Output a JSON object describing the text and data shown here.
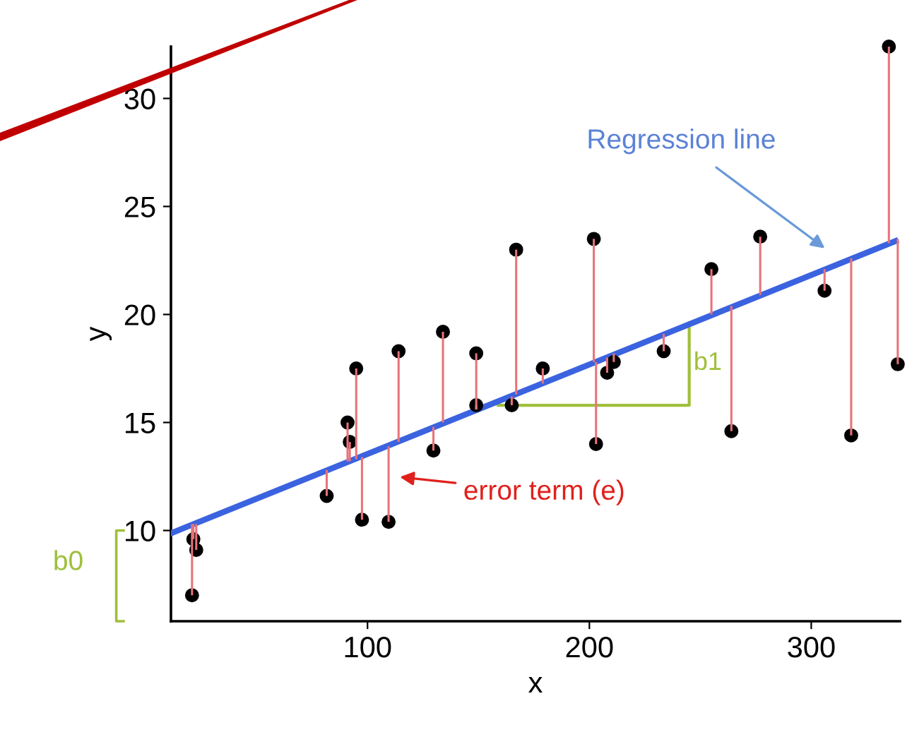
{
  "chart_data": {
    "type": "scatter",
    "xlabel": "x",
    "ylabel": "y",
    "xlim": [
      11.4,
      340
    ],
    "ylim": [
      5.8,
      32.4
    ],
    "xticks": [
      100,
      200,
      300
    ],
    "yticks": [
      10,
      15,
      20,
      25,
      30
    ],
    "grid": false,
    "legend": false,
    "marker": "circle",
    "series": [
      {
        "color": "#000000",
        "x": [
          21.5,
          22.8,
          20.9,
          81.6,
          91,
          92,
          94.9,
          97.5,
          109.5,
          114,
          129.7,
          134,
          149,
          149,
          167,
          165,
          179,
          202,
          203,
          208,
          211,
          233.5,
          255,
          264,
          277,
          306,
          318,
          335,
          339
        ],
        "values": [
          9.6,
          9.1,
          7.0,
          11.6,
          15.0,
          14.1,
          17.5,
          10.5,
          10.4,
          18.3,
          13.7,
          19.2,
          15.8,
          18.2,
          23.0,
          15.8,
          17.5,
          23.5,
          14.0,
          17.3,
          17.8,
          18.3,
          22.1,
          14.6,
          23.6,
          21.1,
          14.4,
          32.4,
          17.7
        ],
        "errors": [
          [
            9.6,
            10.3
          ],
          [
            9.1,
            10.3
          ],
          [
            7.0,
            10.3
          ],
          [
            11.6,
            12.8
          ],
          [
            13.2,
            15.0
          ],
          [
            13.2,
            14.1
          ],
          [
            13.3,
            17.5
          ],
          [
            10.5,
            13.4
          ],
          [
            10.4,
            13.9
          ],
          [
            14.1,
            18.3
          ],
          [
            13.7,
            14.8
          ],
          [
            15.0,
            19.2
          ],
          [
            15.6,
            15.8
          ],
          [
            15.6,
            18.2
          ],
          [
            16.3,
            23.0
          ],
          [
            15.8,
            16.2
          ],
          [
            16.8,
            17.5
          ],
          [
            17.8,
            23.5
          ],
          [
            14.0,
            17.8
          ],
          [
            17.3,
            18.0
          ],
          [
            17.8,
            18.2
          ],
          [
            18.3,
            19.1
          ],
          [
            20.0,
            22.1
          ],
          [
            14.6,
            20.4
          ],
          [
            20.9,
            23.6
          ],
          [
            21.1,
            22.1
          ],
          [
            14.4,
            22.6
          ],
          [
            23.3,
            32.4
          ],
          [
            17.7,
            23.5
          ]
        ]
      },
      {
        "type": "line",
        "color": "#3b63e0",
        "x": [
          11.4,
          338
        ],
        "values": [
          9.87,
          23.4
        ],
        "line_style": "solid",
        "marker": "none"
      }
    ],
    "annotations": [
      "Regression line",
      "error term (e)",
      {
        "text": "b1",
        "x": 245,
        "y": 19.6
      },
      "b0"
    ]
  }
}
